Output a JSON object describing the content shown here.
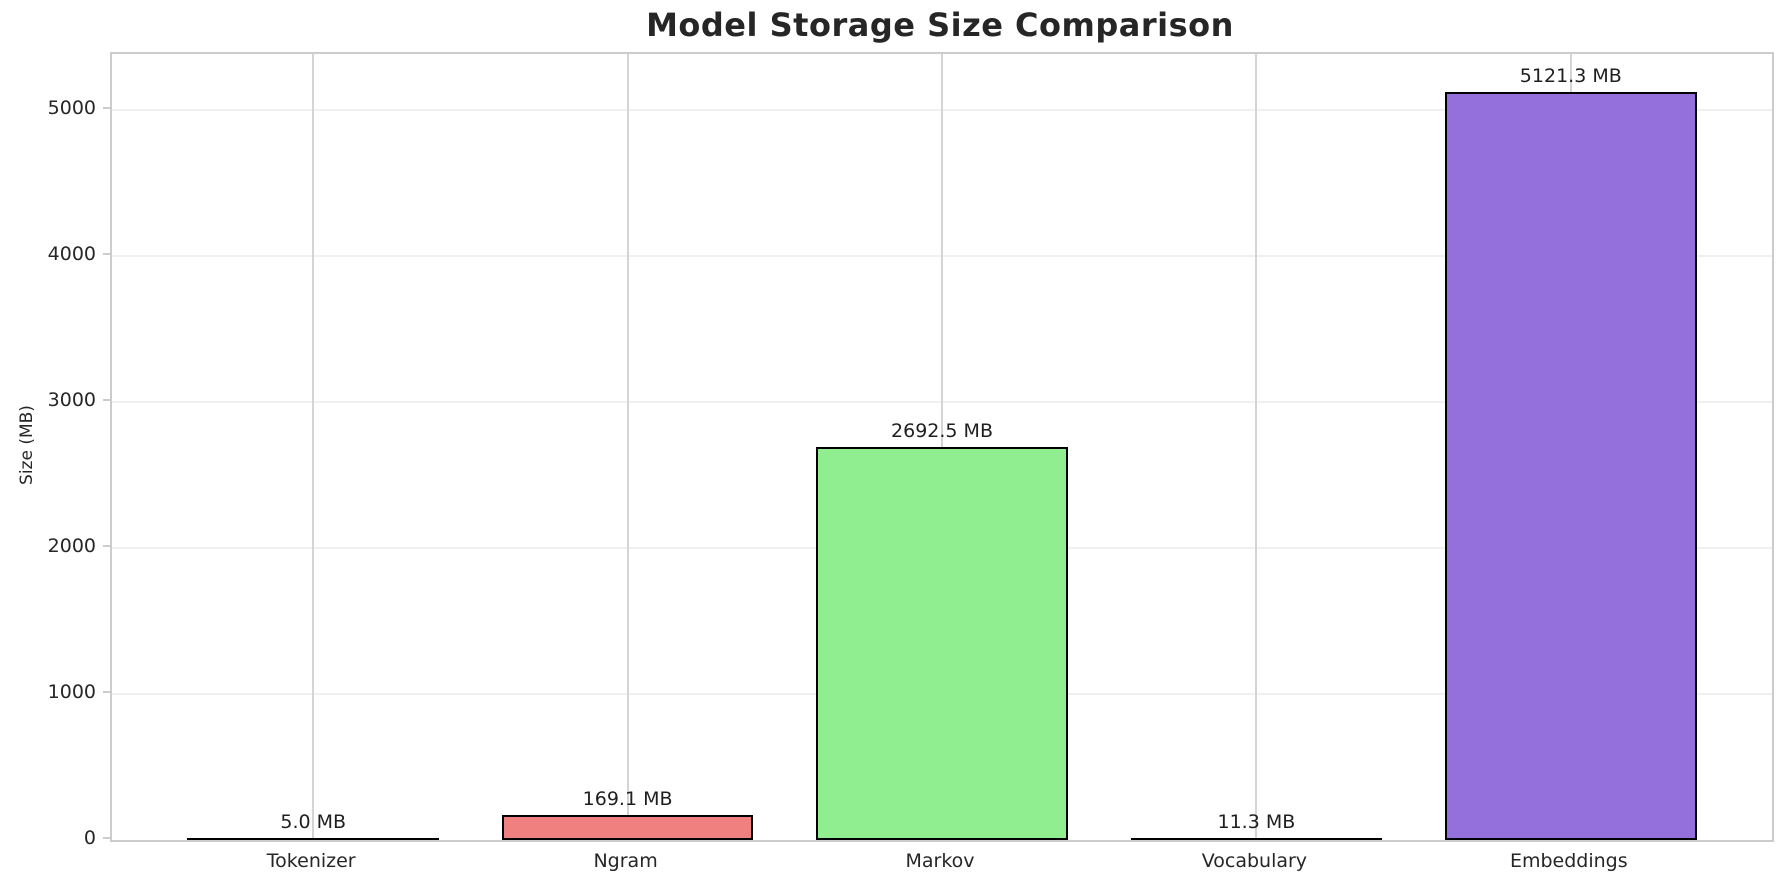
{
  "chart_data": {
    "type": "bar",
    "title": "Model Storage Size Comparison",
    "xlabel": "",
    "ylabel": "Size (MB)",
    "categories": [
      "Tokenizer",
      "Ngram",
      "Markov",
      "Vocabulary",
      "Embeddings"
    ],
    "values": [
      5.0,
      169.1,
      2692.5,
      11.3,
      5121.3
    ],
    "bar_labels": [
      "5.0 MB",
      "169.1 MB",
      "2692.5 MB",
      "11.3 MB",
      "5121.3 MB"
    ],
    "bar_colors": [
      "#87ceeb",
      "#f08080",
      "#90ee90",
      "#ffd700",
      "#9370db"
    ],
    "bar_edge_color": "#000000",
    "yticks": [
      0,
      1000,
      2000,
      3000,
      4000,
      5000
    ],
    "ylim": [
      0,
      5380
    ],
    "grid": true,
    "legend_position": "none"
  }
}
